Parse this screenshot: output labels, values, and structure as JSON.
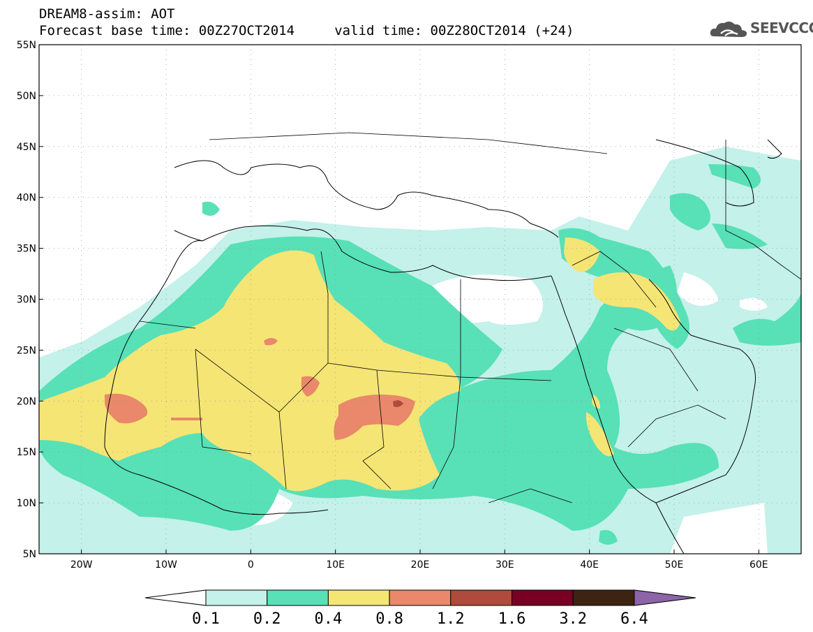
{
  "header": {
    "line1": "DREAM8-assim: AOT",
    "line2": "Forecast base time: 00Z27OCT2014     valid time: 00Z28OCT2014 (+24)"
  },
  "logo": {
    "text": "SEEVCCC",
    "icon": "cloud-icon"
  },
  "map": {
    "lon_range": [
      -25,
      65
    ],
    "lat_range": [
      5,
      55
    ],
    "lon_ticks": [
      {
        "v": -20,
        "label": "20W"
      },
      {
        "v": -10,
        "label": "10W"
      },
      {
        "v": 0,
        "label": "0"
      },
      {
        "v": 10,
        "label": "10E"
      },
      {
        "v": 20,
        "label": "20E"
      },
      {
        "v": 30,
        "label": "30E"
      },
      {
        "v": 40,
        "label": "40E"
      },
      {
        "v": 50,
        "label": "50E"
      },
      {
        "v": 60,
        "label": "60E"
      }
    ],
    "lat_ticks": [
      {
        "v": 55,
        "label": "55N"
      },
      {
        "v": 50,
        "label": "50N"
      },
      {
        "v": 45,
        "label": "45N"
      },
      {
        "v": 40,
        "label": "40N"
      },
      {
        "v": 35,
        "label": "35N"
      },
      {
        "v": 30,
        "label": "30N"
      },
      {
        "v": 25,
        "label": "25N"
      },
      {
        "v": 20,
        "label": "20N"
      },
      {
        "v": 15,
        "label": "15N"
      },
      {
        "v": 10,
        "label": "10N"
      },
      {
        "v": 5,
        "label": "5N"
      }
    ],
    "grid": true
  },
  "colorbar": {
    "colors": [
      "#c4f1ea",
      "#58e0b7",
      "#f5e575",
      "#e9886a",
      "#ae4b3c",
      "#780022",
      "#3d2412"
    ],
    "under_color": "#ffffff",
    "over_color": "#8c64a8",
    "labels": [
      "0.1",
      "0.2",
      "0.4",
      "0.8",
      "1.2",
      "1.6",
      "3.2",
      "6.4"
    ]
  }
}
